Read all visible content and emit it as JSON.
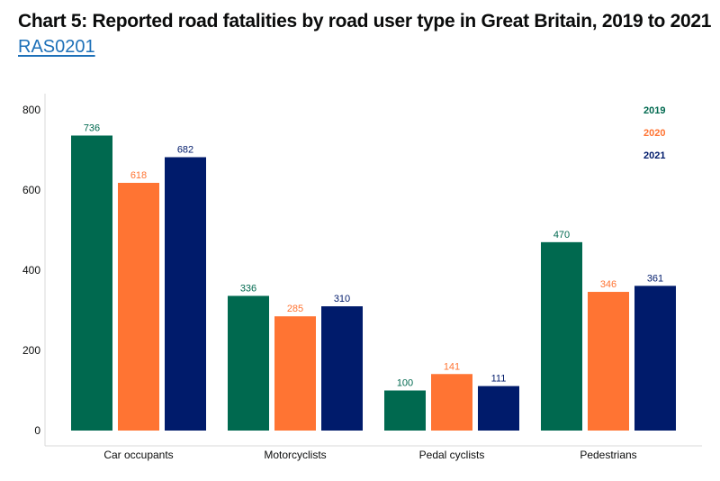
{
  "header": {
    "title": "Chart 5: Reported road fatalities by road user type in Great Britain, 2019 to 2021",
    "link_text": "RAS0201"
  },
  "chart_data": {
    "type": "bar",
    "title": "Chart 5: Reported road fatalities by road user type in Great Britain, 2019 to 2021",
    "xlabel": "",
    "ylabel": "",
    "categories": [
      "Car occupants",
      "Motorcyclists",
      "Pedal cyclists",
      "Pedestrians"
    ],
    "series": [
      {
        "name": "2019",
        "color": "#00694f",
        "values": [
          736,
          336,
          100,
          470
        ]
      },
      {
        "name": "2020",
        "color": "#ff7433",
        "values": [
          618,
          285,
          141,
          346
        ]
      },
      {
        "name": "2021",
        "color": "#001b6b",
        "values": [
          682,
          310,
          111,
          361
        ]
      }
    ],
    "ylim": [
      0,
      800
    ],
    "yticks": [
      0,
      200,
      400,
      600,
      800
    ],
    "grid": false,
    "data_labels": true,
    "legend_position": "top-right"
  }
}
